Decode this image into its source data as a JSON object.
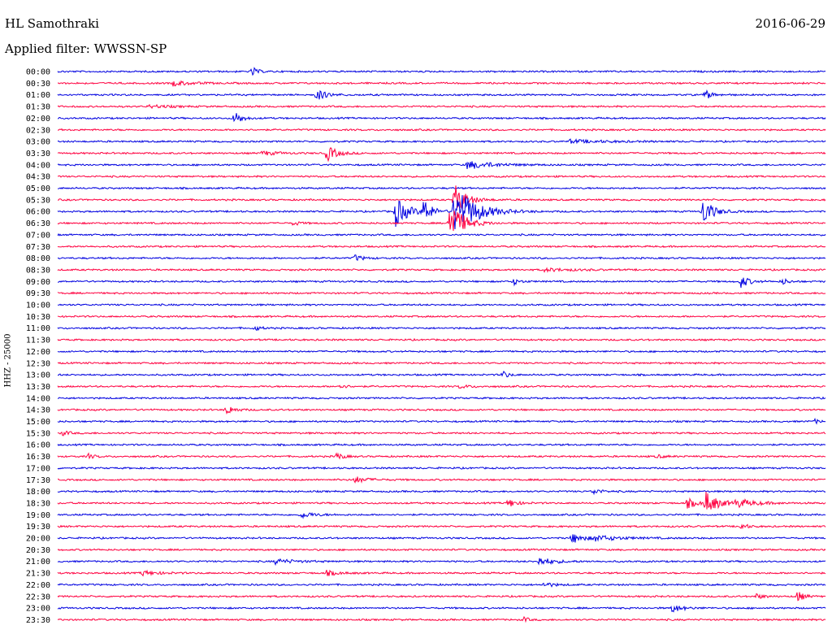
{
  "header": {
    "station": "HL Samothraki",
    "date": "2016-06-29",
    "filter": "Applied filter: WWSSN-SP",
    "channel": "HHZ - 25000"
  },
  "colors": {
    "even_trace": "#0000e0",
    "odd_trace": "#ff0040"
  },
  "chart_data": {
    "type": "line",
    "title": "",
    "ylabel": "HHZ - 25000",
    "xlabel": "",
    "grid": false,
    "legend": "none",
    "row_labels": [
      "00:00",
      "00:30",
      "01:00",
      "01:30",
      "02:00",
      "02:30",
      "03:00",
      "03:30",
      "04:00",
      "04:30",
      "05:00",
      "05:30",
      "06:00",
      "06:30",
      "07:00",
      "07:30",
      "08:00",
      "08:30",
      "09:00",
      "09:30",
      "10:00",
      "10:30",
      "11:00",
      "11:30",
      "12:00",
      "12:30",
      "13:00",
      "13:30",
      "14:00",
      "14:30",
      "15:00",
      "15:30",
      "16:00",
      "16:30",
      "17:00",
      "17:30",
      "18:00",
      "18:30",
      "19:00",
      "19:30",
      "20:00",
      "20:30",
      "21:00",
      "21:30",
      "22:00",
      "22:30",
      "23:00",
      "23:30"
    ],
    "row_minutes": 30,
    "events": [
      {
        "row": 0,
        "minute": 7.6,
        "amp": 6,
        "dur": 0.4
      },
      {
        "row": 1,
        "minute": 4.5,
        "amp": 3,
        "dur": 1.5
      },
      {
        "row": 2,
        "minute": 10.1,
        "amp": 7,
        "dur": 0.8
      },
      {
        "row": 2,
        "minute": 25.3,
        "amp": 6,
        "dur": 0.5
      },
      {
        "row": 3,
        "minute": 3.6,
        "amp": 2,
        "dur": 1.5
      },
      {
        "row": 4,
        "minute": 6.9,
        "amp": 10,
        "dur": 0.5
      },
      {
        "row": 7,
        "minute": 8.0,
        "amp": 3,
        "dur": 1.0
      },
      {
        "row": 7,
        "minute": 10.5,
        "amp": 10,
        "dur": 0.8
      },
      {
        "row": 8,
        "minute": 16.0,
        "amp": 5,
        "dur": 2.0
      },
      {
        "row": 6,
        "minute": 20.0,
        "amp": 2,
        "dur": 3.0
      },
      {
        "row": 11,
        "minute": 15.5,
        "amp": 20,
        "dur": 0.9
      },
      {
        "row": 12,
        "minute": 13.2,
        "amp": 18,
        "dur": 1.0
      },
      {
        "row": 12,
        "minute": 14.3,
        "amp": 16,
        "dur": 0.6
      },
      {
        "row": 12,
        "minute": 15.5,
        "amp": 34,
        "dur": 1.6
      },
      {
        "row": 12,
        "minute": 25.2,
        "amp": 18,
        "dur": 0.8
      },
      {
        "row": 13,
        "minute": 9.2,
        "amp": 3,
        "dur": 0.5
      },
      {
        "row": 13,
        "minute": 15.3,
        "amp": 30,
        "dur": 1.0
      },
      {
        "row": 16,
        "minute": 11.6,
        "amp": 4,
        "dur": 0.6
      },
      {
        "row": 17,
        "minute": 19.0,
        "amp": 2,
        "dur": 2.0
      },
      {
        "row": 18,
        "minute": 17.8,
        "amp": 4,
        "dur": 0.5
      },
      {
        "row": 18,
        "minute": 26.7,
        "amp": 8,
        "dur": 0.6
      },
      {
        "row": 18,
        "minute": 28.3,
        "amp": 4,
        "dur": 0.5
      },
      {
        "row": 22,
        "minute": 7.7,
        "amp": 3,
        "dur": 0.5
      },
      {
        "row": 26,
        "minute": 17.4,
        "amp": 5,
        "dur": 0.4
      },
      {
        "row": 27,
        "minute": 11.0,
        "amp": 3,
        "dur": 0.5
      },
      {
        "row": 27,
        "minute": 15.7,
        "amp": 2,
        "dur": 1.0
      },
      {
        "row": 29,
        "minute": 6.6,
        "amp": 6,
        "dur": 0.6
      },
      {
        "row": 31,
        "minute": 0.2,
        "amp": 3,
        "dur": 0.5
      },
      {
        "row": 30,
        "minute": 29.6,
        "amp": 3,
        "dur": 0.3
      },
      {
        "row": 33,
        "minute": 1.2,
        "amp": 3,
        "dur": 0.5
      },
      {
        "row": 33,
        "minute": 10.9,
        "amp": 5,
        "dur": 0.5
      },
      {
        "row": 33,
        "minute": 23.4,
        "amp": 2,
        "dur": 0.6
      },
      {
        "row": 35,
        "minute": 11.6,
        "amp": 4,
        "dur": 1.0
      },
      {
        "row": 36,
        "minute": 20.9,
        "amp": 4,
        "dur": 0.6
      },
      {
        "row": 37,
        "minute": 17.6,
        "amp": 6,
        "dur": 0.6
      },
      {
        "row": 37,
        "minute": 24.6,
        "amp": 6,
        "dur": 0.8
      },
      {
        "row": 37,
        "minute": 25.3,
        "amp": 14,
        "dur": 1.0
      },
      {
        "row": 37,
        "minute": 26.5,
        "amp": 5,
        "dur": 1.5
      },
      {
        "row": 38,
        "minute": 9.5,
        "amp": 4,
        "dur": 1.0
      },
      {
        "row": 39,
        "minute": 26.7,
        "amp": 4,
        "dur": 0.5
      },
      {
        "row": 40,
        "minute": 20.1,
        "amp": 6,
        "dur": 1.0
      },
      {
        "row": 40,
        "minute": 21.0,
        "amp": 3,
        "dur": 2.0
      },
      {
        "row": 42,
        "minute": 8.5,
        "amp": 3,
        "dur": 1.5
      },
      {
        "row": 42,
        "minute": 18.8,
        "amp": 5,
        "dur": 1.2
      },
      {
        "row": 43,
        "minute": 3.3,
        "amp": 3,
        "dur": 1.2
      },
      {
        "row": 43,
        "minute": 10.5,
        "amp": 3,
        "dur": 1.0
      },
      {
        "row": 44,
        "minute": 19.0,
        "amp": 3,
        "dur": 0.8
      },
      {
        "row": 45,
        "minute": 27.3,
        "amp": 3,
        "dur": 0.6
      },
      {
        "row": 45,
        "minute": 28.9,
        "amp": 7,
        "dur": 0.5
      },
      {
        "row": 46,
        "minute": 24.0,
        "amp": 5,
        "dur": 0.8
      },
      {
        "row": 47,
        "minute": 18.2,
        "amp": 3,
        "dur": 0.4
      }
    ]
  }
}
